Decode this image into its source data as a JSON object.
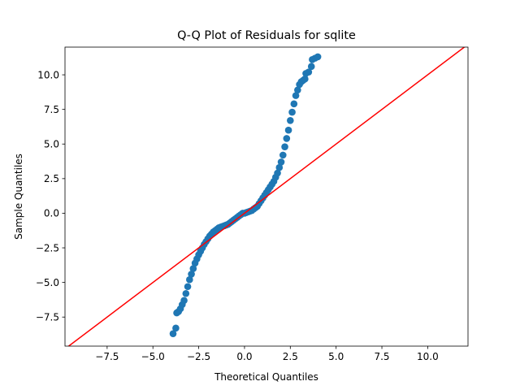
{
  "chart_data": {
    "type": "scatter",
    "title": "Q-Q Plot of Residuals for sqlite",
    "xlabel": "Theoretical Quantiles",
    "ylabel": "Sample Quantiles",
    "xlim": [
      -9.8,
      12.2
    ],
    "ylim": [
      -9.6,
      12.0
    ],
    "x_ticks": [
      -7.5,
      -5.0,
      -2.5,
      0.0,
      2.5,
      5.0,
      7.5,
      10.0
    ],
    "y_ticks": [
      -7.5,
      -5.0,
      -2.5,
      0.0,
      2.5,
      5.0,
      7.5,
      10.0
    ],
    "x_tick_labels": [
      "−7.5",
      "−5.0",
      "−2.5",
      "0.0",
      "2.5",
      "5.0",
      "7.5",
      "10.0"
    ],
    "y_tick_labels": [
      "−7.5",
      "−5.0",
      "−2.5",
      "0.0",
      "2.5",
      "5.0",
      "7.5",
      "10.0"
    ],
    "grid": false,
    "legend": "none",
    "reference_line": {
      "slope": 1,
      "intercept": 0,
      "color": "#ff0000"
    },
    "series": [
      {
        "color": "#1f77b4",
        "x": [
          -3.9,
          -3.75,
          -3.7,
          -3.6,
          -3.5,
          -3.4,
          -3.3,
          -3.2,
          -3.1,
          -3.0,
          -2.9,
          -2.8,
          -2.7,
          -2.6,
          -2.5,
          -2.4,
          -2.3,
          -2.2,
          -2.1,
          -2.0,
          -1.9,
          -1.8,
          -1.7,
          -1.6,
          -1.5,
          -1.4,
          -1.3,
          -1.2,
          -1.1,
          -1.0,
          -0.9,
          -0.8,
          -0.7,
          -0.6,
          -0.5,
          -0.4,
          -0.3,
          -0.2,
          -0.1,
          0.0,
          0.1,
          0.2,
          0.3,
          0.4,
          0.5,
          0.6,
          0.7,
          0.8,
          0.9,
          1.0,
          1.1,
          1.2,
          1.3,
          1.4,
          1.5,
          1.6,
          1.7,
          1.8,
          1.9,
          2.0,
          2.1,
          2.2,
          2.3,
          2.4,
          2.5,
          2.6,
          2.7,
          2.8,
          2.9,
          3.0,
          3.1,
          3.2,
          3.3,
          3.35,
          3.5,
          3.65,
          3.7,
          3.85,
          4.0
        ],
        "y": [
          -8.7,
          -8.3,
          -7.2,
          -7.1,
          -6.9,
          -6.6,
          -6.3,
          -5.8,
          -5.3,
          -4.8,
          -4.4,
          -4.0,
          -3.6,
          -3.3,
          -3.0,
          -2.75,
          -2.5,
          -2.25,
          -2.05,
          -1.85,
          -1.65,
          -1.5,
          -1.35,
          -1.25,
          -1.15,
          -1.05,
          -1.0,
          -0.95,
          -0.9,
          -0.85,
          -0.8,
          -0.7,
          -0.6,
          -0.5,
          -0.4,
          -0.3,
          -0.2,
          -0.1,
          0.0,
          0.0,
          0.05,
          0.1,
          0.15,
          0.2,
          0.3,
          0.4,
          0.5,
          0.7,
          0.9,
          1.1,
          1.3,
          1.5,
          1.7,
          1.9,
          2.1,
          2.3,
          2.6,
          2.9,
          3.3,
          3.7,
          4.2,
          4.8,
          5.4,
          6.0,
          6.7,
          7.3,
          7.9,
          8.5,
          8.9,
          9.3,
          9.5,
          9.6,
          9.7,
          10.1,
          10.2,
          10.6,
          11.1,
          11.2,
          11.3
        ]
      }
    ]
  }
}
